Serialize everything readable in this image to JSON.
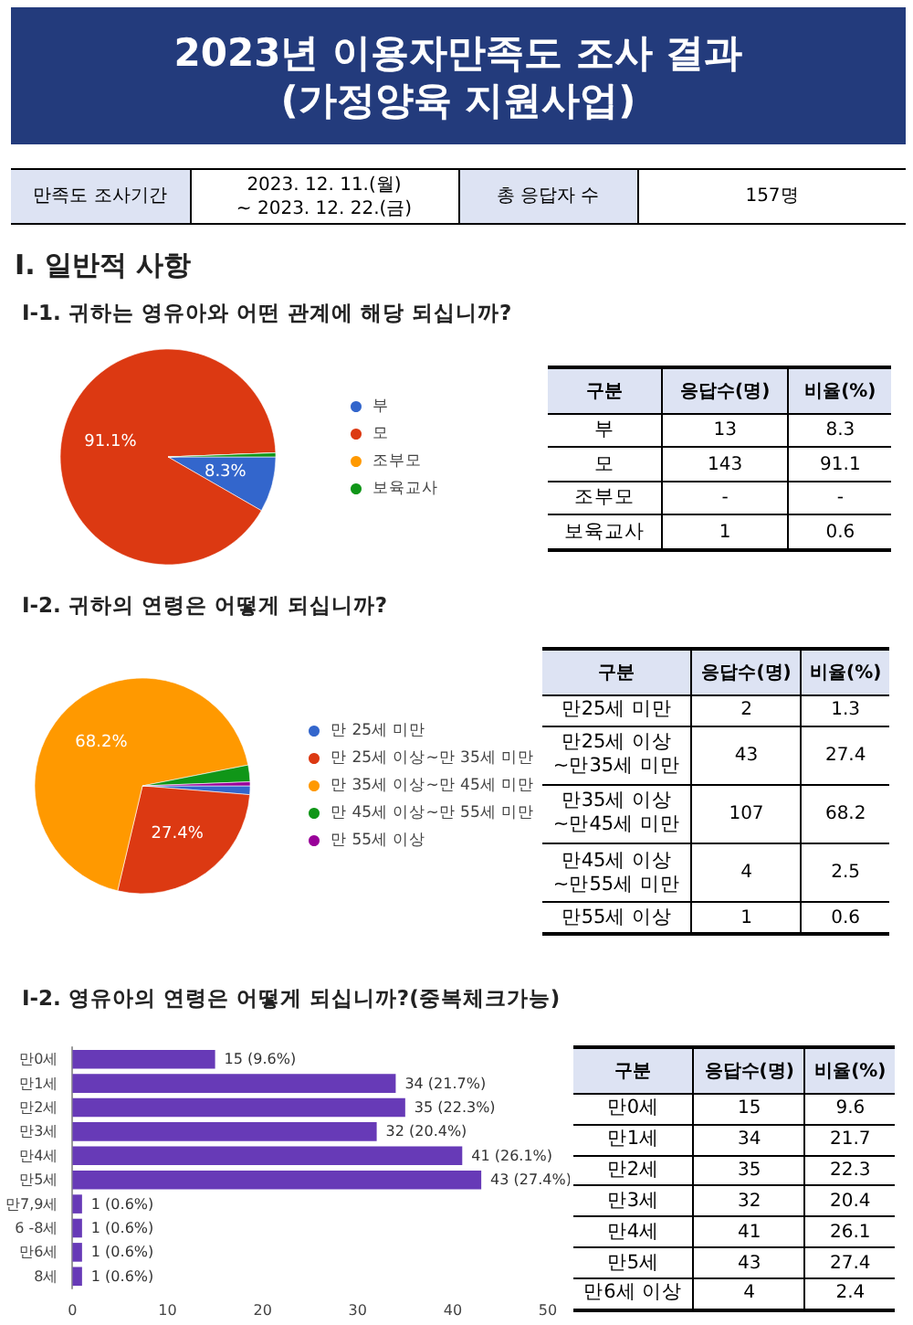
{
  "chart_data": [
    {
      "type": "other",
      "title": "2023년 이용자만족도 조사 결과\n(가정양육 지원사업)",
      "subtitle": "Ⅰ. 일반적 사항",
      "cell_labels": [
        [
          "만족도 조사기간",
          "2023. 12. 11.(월)\n~ 2023. 12. 22.(금)",
          "총 응답자 수",
          "157명"
        ]
      ]
    },
    {
      "type": "pie",
      "title": "Ⅰ-1. 귀하는 영유아와 어떤 관계에 해당 되십니까?",
      "categories": [
        "부",
        "모",
        "조부모",
        "보육교사"
      ],
      "values": [
        8.3,
        91.1,
        0,
        0.6
      ],
      "colors": [
        "#3366cc",
        "#dc3912",
        "#ff9900",
        "#109618"
      ],
      "value_labels": [
        "8.3%",
        "91.1%",
        null,
        null
      ],
      "legend": "right"
    },
    {
      "type": "other",
      "categories": [
        "구분",
        "응답수(명)",
        "비율(%)"
      ],
      "y_categories": [
        "부",
        "모",
        "조부모",
        "보육교사"
      ],
      "cell_labels": [
        [
          "13",
          "8.3"
        ],
        [
          "143",
          "91.1"
        ],
        [
          "-",
          "-"
        ],
        [
          "1",
          "0.6"
        ]
      ]
    },
    {
      "type": "pie",
      "title": "Ⅰ-2. 귀하의 연령은 어떻게 되십니까?",
      "categories": [
        "만 25세 미만",
        "만 25세 이상~만 35세 미만",
        "만 35세 이상~만 45세 미만",
        "만 45세 이상~만 55세 미만",
        "만 55세 이상"
      ],
      "values": [
        1.3,
        27.4,
        68.2,
        2.5,
        0.6
      ],
      "colors": [
        "#3366cc",
        "#dc3912",
        "#ff9900",
        "#109618",
        "#990099"
      ],
      "value_labels": [
        null,
        "27.4%",
        "68.2%",
        null,
        null
      ],
      "legend": "right"
    },
    {
      "type": "other",
      "categories": [
        "구분",
        "응답수(명)",
        "비율(%)"
      ],
      "y_categories": [
        "만25세 미만",
        "만25세 이상\n~만35세 미만",
        "만35세 이상\n~만45세 미만",
        "만45세 이상\n~만55세 미만",
        "만55세 이상"
      ],
      "cell_labels": [
        [
          "2",
          "1.3"
        ],
        [
          "43",
          "27.4"
        ],
        [
          "107",
          "68.2"
        ],
        [
          "4",
          "2.5"
        ],
        [
          "1",
          "0.6"
        ]
      ]
    },
    {
      "type": "bar",
      "orientation": "horizontal",
      "title": "Ⅰ-2. 영유아의 연령은 어떻게 되십니까?(중복체크가능)",
      "categories": [
        "만0세",
        "만1세",
        "만2세",
        "만3세",
        "만4세",
        "만5세",
        "만7,9세",
        "6 -8세",
        "만6세",
        "8세"
      ],
      "values": [
        15,
        34,
        35,
        32,
        41,
        43,
        1,
        1,
        1,
        1
      ],
      "color": "#673ab7",
      "value_labels": [
        "15 (9.6%)",
        "34 (21.7%)",
        "35 (22.3%)",
        "32 (20.4%)",
        "41 (26.1%)",
        "43 (27.4%)",
        "1 (0.6%)",
        "1 (0.6%)",
        "1 (0.6%)",
        "1 (0.6%)"
      ],
      "xlim": [
        0,
        50
      ],
      "xticks": [
        0,
        10,
        20,
        30,
        40,
        50
      ]
    },
    {
      "type": "other",
      "categories": [
        "구분",
        "응답수(명)",
        "비율(%)"
      ],
      "y_categories": [
        "만0세",
        "만1세",
        "만2세",
        "만3세",
        "만4세",
        "만5세",
        "만6세 이상"
      ],
      "cell_labels": [
        [
          "15",
          "9.6"
        ],
        [
          "34",
          "21.7"
        ],
        [
          "35",
          "22.3"
        ],
        [
          "32",
          "20.4"
        ],
        [
          "41",
          "26.1"
        ],
        [
          "43",
          "27.4"
        ],
        [
          "4",
          "2.4"
        ]
      ]
    }
  ]
}
